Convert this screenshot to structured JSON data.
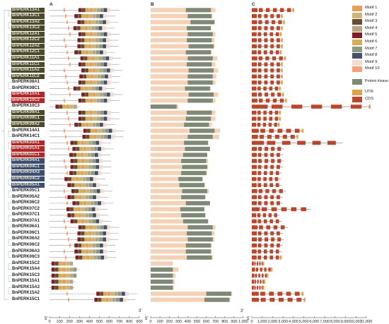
{
  "panels": {
    "a": "A",
    "b": "B",
    "c": "C"
  },
  "genes": [
    "BnPERK13A1",
    "BnPERK13C1",
    "BnPERK13A2",
    "BnPERK13C2",
    "BnPERK12A1",
    "BnPERK12C2",
    "BnPERK12A2",
    "BnPERK12C1",
    "BnPERK11A1",
    "BnPERK11C1",
    "BnPERK11A2",
    "BnPERK11C2",
    "BnPERK08A1",
    "BnPERK08C1",
    "BnPERK10A1",
    "BnPERK10C2",
    "BnPERK10C3",
    "BnPERK09A1",
    "BnPERK09C1",
    "BnPERK09A2",
    "BnPERK14A1",
    "BnPERK14C1",
    "BnPERK03A1",
    "BnPERK01A1",
    "BnPERK01C1",
    "BnPERK04A1",
    "BnPERK04C1",
    "BnPERK04A3",
    "BnPERK04C2",
    "BnPERK05A1",
    "BnPERK05C1",
    "BnPERK05A2",
    "BnPERK06C2",
    "BnPERK07C2",
    "BnPERK07C1",
    "BnPERK07A1",
    "BnPERK06A1",
    "BnPERK06C1",
    "BnPERK06A2",
    "BnPERK06C2",
    "BnPERK06A3",
    "BnPERK06C3",
    "BnPERK15C2",
    "BnPERK15A4",
    "BnPERK15C3",
    "BnPERK15A1",
    "BnPERK15A3",
    "BnPERK15A2",
    "BnPERK15C1"
  ],
  "highlights": {
    "olive": [
      0,
      1,
      2,
      3,
      4,
      5,
      6,
      7,
      8,
      9,
      10,
      11,
      17,
      18,
      19
    ],
    "red": [
      14,
      15,
      22,
      23,
      24
    ],
    "blue": [
      25,
      26,
      27,
      28,
      29
    ]
  },
  "axis_a": {
    "ticks": [
      "0",
      "100",
      "200",
      "300",
      "400",
      "500",
      "600",
      "700",
      "800",
      "900"
    ],
    "end": "3'",
    "start": "5'"
  },
  "axis_b": {
    "ticks": [
      "0",
      "100",
      "200",
      "300",
      "400",
      "500",
      "600",
      "700",
      "800",
      "900",
      "1,000"
    ],
    "end": "3'",
    "start": "5'"
  },
  "axis_c": {
    "ticks": [
      "0",
      "1,000",
      "2,000",
      "3,000",
      "4,000",
      "5,000",
      "6,000",
      "7,000",
      "8,000",
      "9,000",
      "10,000",
      "11,000"
    ],
    "start": "5'"
  },
  "legend": {
    "motifs": [
      {
        "label": "Motif 1",
        "color": "#e1a15a"
      },
      {
        "label": "Motif 2",
        "color": "#c9b67a"
      },
      {
        "label": "Motif 3",
        "color": "#6b4b2f"
      },
      {
        "label": "Motif 4",
        "color": "#b9a582"
      },
      {
        "label": "Motif 5",
        "color": "#7b1f23"
      },
      {
        "label": "Motif 6",
        "color": "#d6ad54"
      },
      {
        "label": "Motif 7",
        "color": "#8c9a83"
      },
      {
        "label": "Motif 8",
        "color": "#465069"
      },
      {
        "label": "Motif 9",
        "color": "#f2ddd0"
      },
      {
        "label": "Motif 10",
        "color": "#f5a07a"
      }
    ],
    "domain": {
      "label": "Protein kinase domain",
      "color": "#7e8a77"
    },
    "utr": {
      "label": "UTR",
      "color": "#e0a24e"
    },
    "cds": {
      "label": "CDS",
      "color": "#b8472e"
    }
  }
}
